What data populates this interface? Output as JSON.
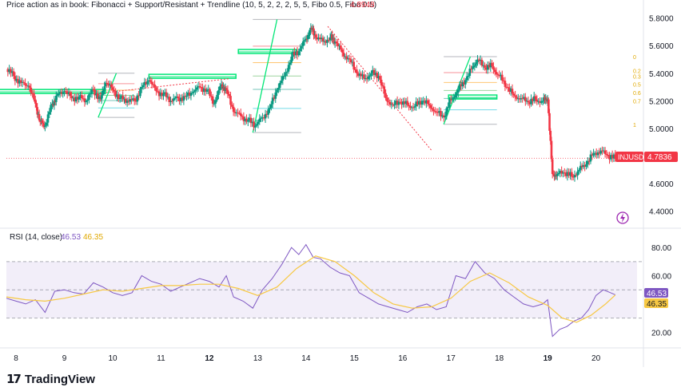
{
  "chart_data": [
    {
      "type": "candlestick",
      "title": "Price action as in book: Fibonacci + Support/Resistant + Trendline (10, 5, 2, 2, 2, 5, 5, Fibo 0.5, Fibo 0.5)",
      "title_value": "4.8948",
      "symbol": "INJUSD",
      "last_price": "4.7836",
      "ylim": [
        4.3,
        5.85
      ],
      "y_ticks": [
        "5.8000",
        "5.6000",
        "5.4000",
        "5.2000",
        "5.0000",
        "4.8000",
        "4.6000",
        "4.4000"
      ],
      "y_tick_values": [
        5.8,
        5.6,
        5.4,
        5.2,
        5.0,
        4.8,
        4.6,
        4.4
      ],
      "fib_labels": [
        "0",
        "0.2",
        "0.3",
        "0.5",
        "0.6",
        "0.7",
        "1"
      ],
      "fib_values": [
        5.52,
        5.42,
        5.38,
        5.32,
        5.26,
        5.2,
        5.03
      ],
      "resistance_zones": [
        {
          "x0": 7.6,
          "x1": 9.85,
          "y": 5.265
        },
        {
          "x0": 10.75,
          "x1": 12.55,
          "y": 5.375
        },
        {
          "x0": 12.6,
          "x1": 13.8,
          "y": 5.555
        },
        {
          "x0": 16.95,
          "x1": 17.95,
          "y": 5.225
        }
      ],
      "trendlines": [
        {
          "x0": 9.6,
          "x1": 12.4,
          "y0": 5.25,
          "y1": 5.36
        },
        {
          "x0": 14.45,
          "x1": 16.6,
          "y0": 5.74,
          "y1": 4.84
        }
      ],
      "fib_sets": [
        {
          "x0": 9.7,
          "x1": 10.45,
          "low": 5.08,
          "high": 5.4
        },
        {
          "x0": 12.9,
          "x1": 13.9,
          "low": 4.97,
          "high": 5.79
        },
        {
          "x0": 16.85,
          "x1": 17.95,
          "low": 5.03,
          "high": 5.52
        }
      ],
      "x_ticks": [
        "8",
        "9",
        "10",
        "11",
        "12",
        "13",
        "14",
        "15",
        "16",
        "17",
        "18",
        "19",
        "20"
      ],
      "x_tick_values": [
        8,
        9,
        10,
        11,
        12,
        13,
        14,
        15,
        16,
        17,
        18,
        19,
        20
      ],
      "x_tick_bold": [
        "12",
        "19"
      ],
      "xlim": [
        7.8,
        20.9
      ],
      "close": [
        [
          7.8,
          5.43
        ],
        [
          7.95,
          5.38
        ],
        [
          8.1,
          5.33
        ],
        [
          8.25,
          5.31
        ],
        [
          8.4,
          5.18
        ],
        [
          8.5,
          5.05
        ],
        [
          8.6,
          5.02
        ],
        [
          8.75,
          5.18
        ],
        [
          8.85,
          5.24
        ],
        [
          9.0,
          5.27
        ],
        [
          9.15,
          5.22
        ],
        [
          9.3,
          5.23
        ],
        [
          9.45,
          5.2
        ],
        [
          9.6,
          5.28
        ],
        [
          9.75,
          5.21
        ],
        [
          9.85,
          5.33
        ],
        [
          10.0,
          5.28
        ],
        [
          10.15,
          5.22
        ],
        [
          10.3,
          5.2
        ],
        [
          10.45,
          5.2
        ],
        [
          10.6,
          5.3
        ],
        [
          10.75,
          5.35
        ],
        [
          10.9,
          5.27
        ],
        [
          11.05,
          5.25
        ],
        [
          11.2,
          5.2
        ],
        [
          11.35,
          5.22
        ],
        [
          11.5,
          5.23
        ],
        [
          11.65,
          5.26
        ],
        [
          11.8,
          5.3
        ],
        [
          11.95,
          5.28
        ],
        [
          12.1,
          5.18
        ],
        [
          12.25,
          5.32
        ],
        [
          12.35,
          5.28
        ],
        [
          12.5,
          5.12
        ],
        [
          12.65,
          5.09
        ],
        [
          12.8,
          5.06
        ],
        [
          12.95,
          5.02
        ],
        [
          13.1,
          5.08
        ],
        [
          13.25,
          5.15
        ],
        [
          13.4,
          5.28
        ],
        [
          13.55,
          5.38
        ],
        [
          13.7,
          5.52
        ],
        [
          13.85,
          5.56
        ],
        [
          14.0,
          5.65
        ],
        [
          14.1,
          5.73
        ],
        [
          14.2,
          5.66
        ],
        [
          14.35,
          5.63
        ],
        [
          14.5,
          5.66
        ],
        [
          14.6,
          5.63
        ],
        [
          14.75,
          5.55
        ],
        [
          14.9,
          5.5
        ],
        [
          15.05,
          5.4
        ],
        [
          15.2,
          5.36
        ],
        [
          15.35,
          5.4
        ],
        [
          15.5,
          5.38
        ],
        [
          15.65,
          5.22
        ],
        [
          15.8,
          5.17
        ],
        [
          15.95,
          5.19
        ],
        [
          16.1,
          5.17
        ],
        [
          16.25,
          5.16
        ],
        [
          16.4,
          5.2
        ],
        [
          16.55,
          5.17
        ],
        [
          16.7,
          5.12
        ],
        [
          16.85,
          5.08
        ],
        [
          17.0,
          5.21
        ],
        [
          17.15,
          5.28
        ],
        [
          17.3,
          5.35
        ],
        [
          17.45,
          5.45
        ],
        [
          17.55,
          5.5
        ],
        [
          17.7,
          5.44
        ],
        [
          17.85,
          5.45
        ],
        [
          18.0,
          5.38
        ],
        [
          18.15,
          5.3
        ],
        [
          18.3,
          5.24
        ],
        [
          18.45,
          5.22
        ],
        [
          18.6,
          5.19
        ],
        [
          18.75,
          5.21
        ],
        [
          18.9,
          5.2
        ],
        [
          19.0,
          5.21
        ],
        [
          19.1,
          4.67
        ],
        [
          19.2,
          4.67
        ],
        [
          19.35,
          4.68
        ],
        [
          19.5,
          4.65
        ],
        [
          19.65,
          4.7
        ],
        [
          19.8,
          4.74
        ],
        [
          19.95,
          4.82
        ],
        [
          20.1,
          4.84
        ],
        [
          20.25,
          4.8
        ],
        [
          20.4,
          4.78
        ]
      ]
    },
    {
      "type": "line",
      "title": "RSI (14, close)",
      "rsi_value": "46.53",
      "ma_value": "46.35",
      "ylim": [
        10,
        88
      ],
      "y_ticks": [
        "80.00",
        "60.00",
        "20.00"
      ],
      "y_tick_values": [
        80,
        60,
        20
      ],
      "band": [
        30,
        70
      ],
      "mid": 50,
      "series": [
        {
          "name": "",
          "color": "#7E57C2",
          "values": [
            [
              7.8,
              44
            ],
            [
              8.0,
              42
            ],
            [
              8.2,
              40
            ],
            [
              8.4,
              43
            ],
            [
              8.6,
              34
            ],
            [
              8.8,
              49
            ],
            [
              9.0,
              50
            ],
            [
              9.2,
              48
            ],
            [
              9.4,
              47
            ],
            [
              9.6,
              55
            ],
            [
              9.8,
              52
            ],
            [
              10.0,
              48
            ],
            [
              10.2,
              46
            ],
            [
              10.4,
              48
            ],
            [
              10.6,
              60
            ],
            [
              10.8,
              56
            ],
            [
              11.0,
              54
            ],
            [
              11.2,
              49
            ],
            [
              11.4,
              52
            ],
            [
              11.6,
              55
            ],
            [
              11.8,
              58
            ],
            [
              12.0,
              56
            ],
            [
              12.2,
              52
            ],
            [
              12.35,
              60
            ],
            [
              12.5,
              45
            ],
            [
              12.7,
              42
            ],
            [
              12.9,
              37
            ],
            [
              13.1,
              50
            ],
            [
              13.3,
              58
            ],
            [
              13.5,
              68
            ],
            [
              13.7,
              80
            ],
            [
              13.85,
              75
            ],
            [
              14.0,
              82
            ],
            [
              14.15,
              73
            ],
            [
              14.3,
              72
            ],
            [
              14.5,
              66
            ],
            [
              14.7,
              62
            ],
            [
              14.9,
              60
            ],
            [
              15.1,
              48
            ],
            [
              15.3,
              44
            ],
            [
              15.5,
              40
            ],
            [
              15.7,
              38
            ],
            [
              15.9,
              36
            ],
            [
              16.1,
              34
            ],
            [
              16.3,
              38
            ],
            [
              16.5,
              40
            ],
            [
              16.7,
              36
            ],
            [
              16.9,
              38
            ],
            [
              17.1,
              60
            ],
            [
              17.3,
              58
            ],
            [
              17.5,
              70
            ],
            [
              17.7,
              62
            ],
            [
              17.9,
              58
            ],
            [
              18.1,
              50
            ],
            [
              18.3,
              45
            ],
            [
              18.5,
              40
            ],
            [
              18.7,
              38
            ],
            [
              18.9,
              40
            ],
            [
              19.0,
              43
            ],
            [
              19.1,
              17
            ],
            [
              19.25,
              22
            ],
            [
              19.4,
              24
            ],
            [
              19.55,
              28
            ],
            [
              19.7,
              30
            ],
            [
              19.85,
              36
            ],
            [
              20.0,
              46
            ],
            [
              20.15,
              50
            ],
            [
              20.3,
              48
            ],
            [
              20.4,
              46.5
            ]
          ]
        },
        {
          "name": "",
          "color": "#F7C843",
          "values": [
            [
              7.8,
              45
            ],
            [
              8.2,
              43
            ],
            [
              8.6,
              42
            ],
            [
              9.0,
              44
            ],
            [
              9.4,
              47
            ],
            [
              9.8,
              50
            ],
            [
              10.2,
              49
            ],
            [
              10.6,
              51
            ],
            [
              11.0,
              53
            ],
            [
              11.4,
              53
            ],
            [
              11.8,
              54
            ],
            [
              12.2,
              54
            ],
            [
              12.6,
              51
            ],
            [
              13.0,
              46
            ],
            [
              13.4,
              52
            ],
            [
              13.8,
              65
            ],
            [
              14.2,
              74
            ],
            [
              14.6,
              70
            ],
            [
              15.0,
              60
            ],
            [
              15.4,
              48
            ],
            [
              15.8,
              40
            ],
            [
              16.2,
              37
            ],
            [
              16.6,
              38
            ],
            [
              17.0,
              44
            ],
            [
              17.4,
              56
            ],
            [
              17.8,
              62
            ],
            [
              18.2,
              55
            ],
            [
              18.6,
              45
            ],
            [
              19.0,
              39
            ],
            [
              19.3,
              30
            ],
            [
              19.6,
              27
            ],
            [
              19.9,
              32
            ],
            [
              20.2,
              40
            ],
            [
              20.4,
              46.35
            ]
          ]
        }
      ]
    }
  ],
  "brand": {
    "logo": "17",
    "name": "TradingView"
  },
  "colors": {
    "up": "#089981",
    "down": "#F23645",
    "rsi": "#7E57C2",
    "ma": "#F7C843",
    "fib": "#F9C74F",
    "zone": "#00E676"
  }
}
